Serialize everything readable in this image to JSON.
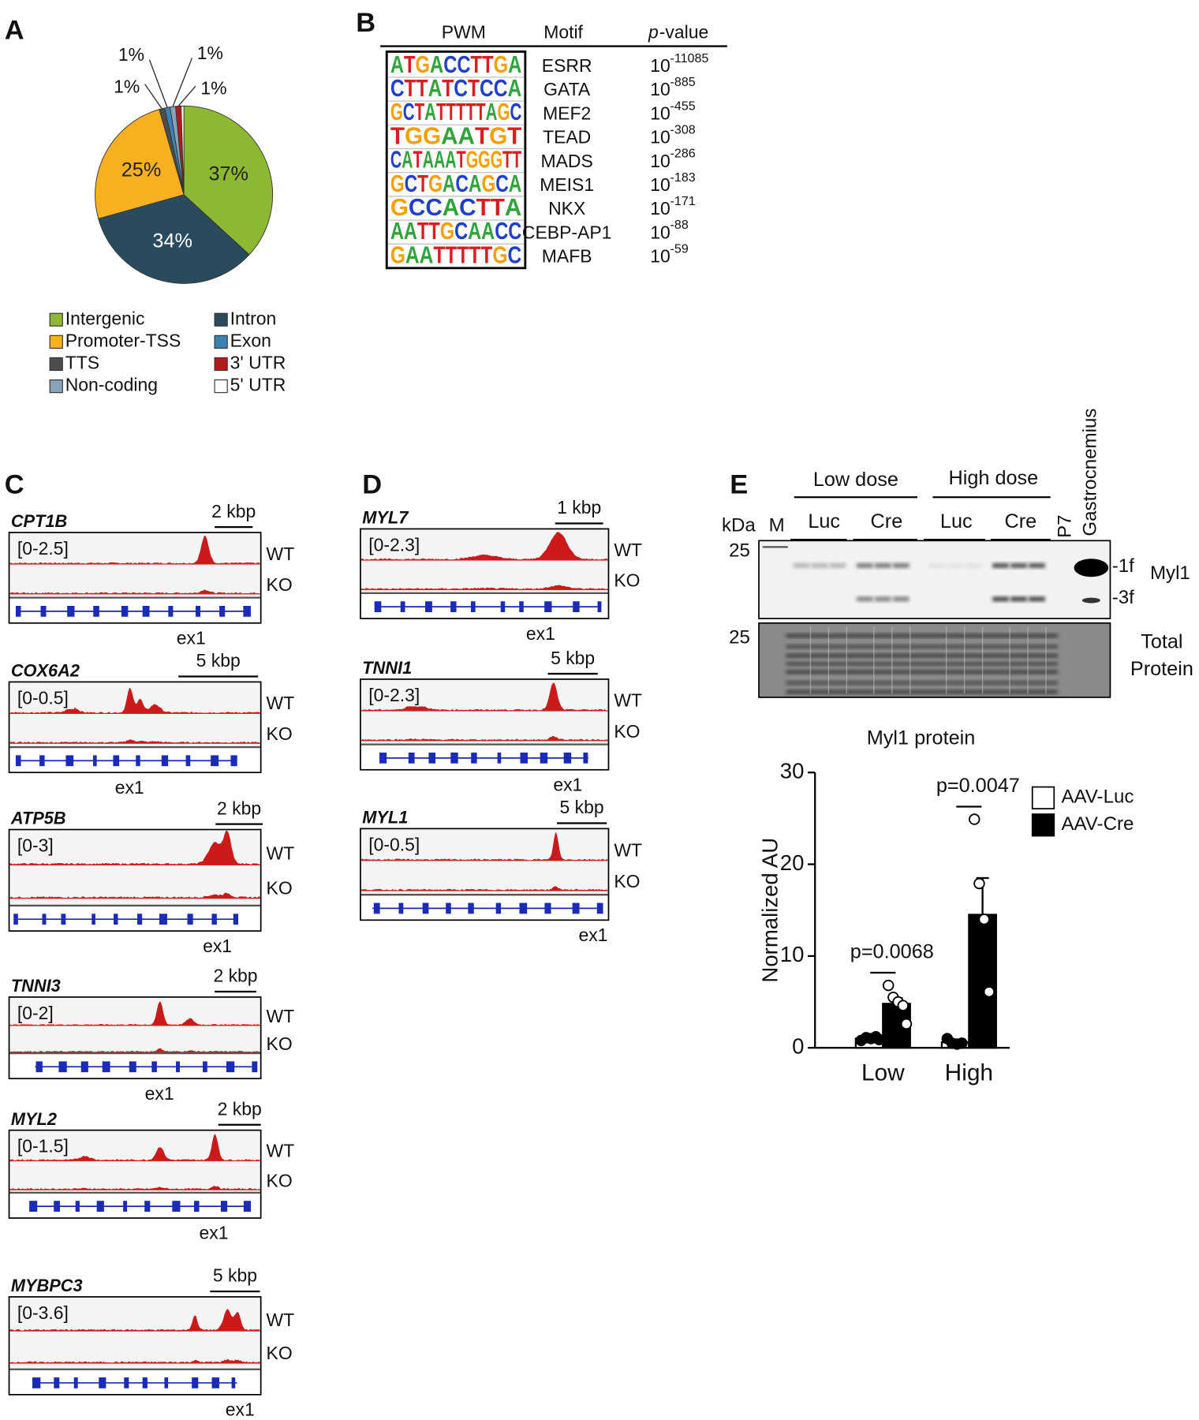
{
  "panel_labels": [
    "A",
    "B",
    "C",
    "D",
    "E"
  ],
  "chart_data": [
    {
      "type": "pie",
      "categories": [
        "Intergenic",
        "Intron",
        "Promoter-TSS",
        "TTS",
        "Exon",
        "Non-coding",
        "3' UTR",
        "5' UTR"
      ],
      "values": [
        37,
        34,
        25,
        1,
        1,
        1,
        1,
        0.5
      ],
      "value_labels": [
        "37%",
        "34%",
        "25%",
        "1%",
        "1%",
        "1%",
        "1%",
        null
      ],
      "colors": [
        "#8db832",
        "#2a4a5e",
        "#f7b120",
        "#4d4d4d",
        "#3b82ae",
        "#86a3b8",
        "#b31b1b",
        "#ffffff"
      ],
      "legend": true
    },
    {
      "type": "bar",
      "title": "Myl1 protein",
      "y_label": "Normalized AU",
      "categories": [
        "Low",
        "High"
      ],
      "series": [
        {
          "name": "AAV-Luc",
          "color": "#ffffff",
          "point_color": "#000000",
          "values": [
            1.0,
            0.6
          ],
          "errors": [
            0.1,
            0.15
          ],
          "points": [
            [
              0.8,
              1.1,
              1.0,
              1.2,
              0.9
            ],
            [
              1.0,
              0.5,
              0.4,
              0.5
            ]
          ]
        },
        {
          "name": "AAV-Cre",
          "color": "#000000",
          "point_color": "#ffffff",
          "values": [
            4.8,
            14.5
          ],
          "errors": [
            0.6,
            4.0
          ],
          "points": [
            [
              6.8,
              5.5,
              5.0,
              4.6,
              2.6
            ],
            [
              24.9,
              17.9,
              14.0,
              6.1
            ]
          ]
        }
      ],
      "annotations": [
        "p=0.0068",
        "p=0.0047"
      ],
      "ylim": [
        0,
        30
      ],
      "yticks": [
        0,
        10,
        20,
        30
      ],
      "legend": true
    }
  ],
  "motif_table": {
    "headers": {
      "pwm": "PWM",
      "motif": "Motif",
      "pvalue_italic": "p",
      "pvalue_rest": "-value"
    },
    "rows": [
      {
        "logo": "ATGACCTTGA",
        "motif": "ESRR",
        "base": "10",
        "exponent": "-11085"
      },
      {
        "logo": "CTTATCTCCA",
        "motif": "GATA",
        "base": "10",
        "exponent": "-885"
      },
      {
        "logo": "GCTATTTTTAGC",
        "motif": "MEF2",
        "base": "10",
        "exponent": "-455"
      },
      {
        "logo": "TGGAATGT",
        "motif": "TEAD",
        "base": "10",
        "exponent": "-308"
      },
      {
        "logo": "CATAAATGGGTT",
        "motif": "MADS",
        "base": "10",
        "exponent": "-286"
      },
      {
        "logo": "GCTGACAGCA",
        "motif": "MEIS1",
        "base": "10",
        "exponent": "-183"
      },
      {
        "logo": "GCCACTTA",
        "motif": "NKX",
        "base": "10",
        "exponent": "-171"
      },
      {
        "logo": "AATTGCAACC",
        "motif": "CEBP-AP1",
        "base": "10",
        "exponent": "-88"
      },
      {
        "logo": "GAATTTTTGC",
        "motif": "MAFB",
        "base": "10",
        "exponent": "-59"
      }
    ]
  },
  "tracks": {
    "panel_c": [
      {
        "gene": "CPT1B",
        "scale": "2 kbp",
        "range": "[0-2.5]",
        "wt": "WT",
        "ko": "KO",
        "exon": "ex1"
      },
      {
        "gene": "COX6A2",
        "scale": "5 kbp",
        "range": "[0-0.5]",
        "wt": "WT",
        "ko": "KO",
        "exon": "ex1"
      },
      {
        "gene": "ATP5B",
        "scale": "2 kbp",
        "range": "[0-3]",
        "wt": "WT",
        "ko": "KO",
        "exon": "ex1"
      },
      {
        "gene": "TNNI3",
        "scale": "2 kbp",
        "range": "[0-2]",
        "wt": "WT",
        "ko": "KO",
        "exon": "ex1"
      },
      {
        "gene": "MYL2",
        "scale": "2 kbp",
        "range": "[0-1.5]",
        "wt": "WT",
        "ko": "KO",
        "exon": "ex1"
      },
      {
        "gene": "MYBPC3",
        "scale": "5 kbp",
        "range": "[0-3.6]",
        "wt": "WT",
        "ko": "KO",
        "exon": "ex1"
      }
    ],
    "panel_d": [
      {
        "gene": "MYL7",
        "scale": "1 kbp",
        "range": "[0-2.3]",
        "wt": "WT",
        "ko": "KO",
        "exon": "ex1"
      },
      {
        "gene": "TNNI1",
        "scale": "5 kbp",
        "range": "[0-2.3]",
        "wt": "WT",
        "ko": "KO",
        "exon": "ex1"
      },
      {
        "gene": "MYL1",
        "scale": "5 kbp",
        "range": "[0-0.5]",
        "wt": "WT",
        "ko": "KO",
        "exon": "ex1"
      }
    ]
  },
  "blot": {
    "groups": [
      "Low dose",
      "High dose"
    ],
    "lanes": [
      "Luc",
      "Cre",
      "Luc",
      "Cre"
    ],
    "extra_lanes": [
      "P7",
      "Gastrocnemius"
    ],
    "kda": "kDa",
    "marker": "M",
    "mw": [
      "25",
      "25"
    ],
    "bands": [
      "-1f",
      "-3f"
    ],
    "protein": "Myl1",
    "loading": [
      "Total",
      "Protein"
    ]
  }
}
